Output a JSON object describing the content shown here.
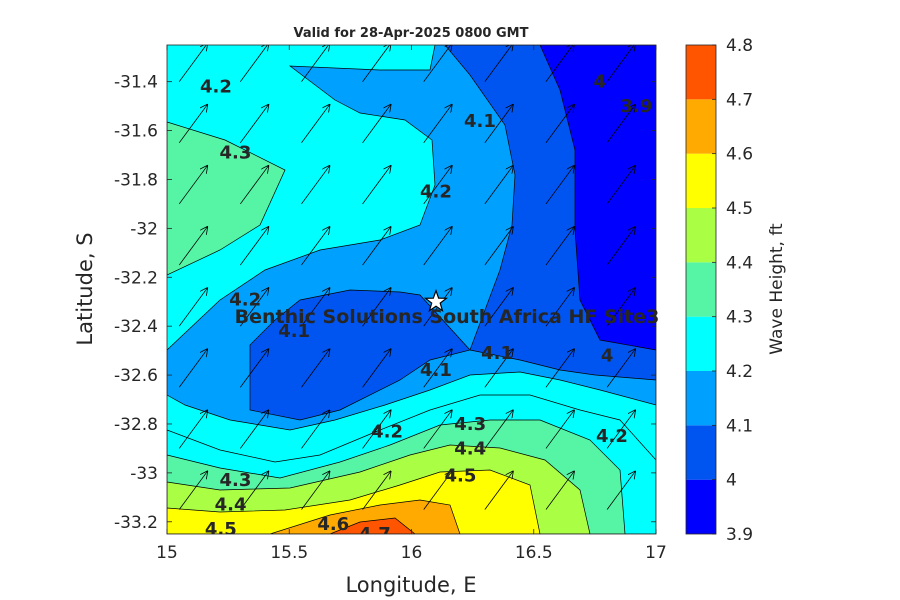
{
  "chart_data": {
    "type": "heatmap",
    "subtype": "filled-contour-with-vectors",
    "title": "Valid for 28-Apr-2025 0800 GMT",
    "xlabel": "Longitude, E",
    "ylabel": "Latitude, S",
    "xlim": [
      15,
      17
    ],
    "ylim": [
      -33.25,
      -31.25
    ],
    "xticks": [
      {
        "value": 15,
        "label": "15"
      },
      {
        "value": 15.5,
        "label": "15.5"
      },
      {
        "value": 16,
        "label": "16"
      },
      {
        "value": 16.5,
        "label": "16.5"
      },
      {
        "value": 17,
        "label": "17"
      }
    ],
    "yticks": [
      {
        "value": -31.4,
        "label": "-31.4"
      },
      {
        "value": -31.6,
        "label": "-31.6"
      },
      {
        "value": -31.8,
        "label": "-31.8"
      },
      {
        "value": -32,
        "label": "-32"
      },
      {
        "value": -32.2,
        "label": "-32.2"
      },
      {
        "value": -32.4,
        "label": "-32.4"
      },
      {
        "value": -32.6,
        "label": "-32.6"
      },
      {
        "value": -32.8,
        "label": "-32.8"
      },
      {
        "value": -33,
        "label": "-33"
      },
      {
        "value": -33.2,
        "label": "-33.2"
      }
    ],
    "colorbar": {
      "label": "Wave Height, ft",
      "range": [
        3.9,
        4.8
      ],
      "levels": [
        3.9,
        4.0,
        4.1,
        4.2,
        4.3,
        4.4,
        4.5,
        4.6,
        4.7,
        4.8
      ],
      "tick_labels": [
        "3.9",
        "4",
        "4.1",
        "4.2",
        "4.3",
        "4.4",
        "4.5",
        "4.6",
        "4.7",
        "4.8"
      ],
      "colors": [
        "#0000ff",
        "#0055f0",
        "#00a0ff",
        "#00ffff",
        "#55f5a5",
        "#aaff44",
        "#ffff00",
        "#ffaa00",
        "#ff5500"
      ]
    },
    "contour_labels": [
      {
        "text": "4.2",
        "lon": 15.2,
        "lat": -31.42
      },
      {
        "text": "4.3",
        "lon": 15.28,
        "lat": -31.69
      },
      {
        "text": "4.1",
        "lon": 16.28,
        "lat": -31.56
      },
      {
        "text": "4.2",
        "lon": 16.1,
        "lat": -31.85
      },
      {
        "text": "4",
        "lon": 16.77,
        "lat": -31.4
      },
      {
        "text": "3.9",
        "lon": 16.92,
        "lat": -31.5
      },
      {
        "text": "4.2",
        "lon": 15.32,
        "lat": -32.29
      },
      {
        "text": "4.1",
        "lon": 15.52,
        "lat": -32.42
      },
      {
        "text": "4.1",
        "lon": 16.1,
        "lat": -32.58
      },
      {
        "text": "4.1",
        "lon": 16.35,
        "lat": -32.51
      },
      {
        "text": "4",
        "lon": 16.8,
        "lat": -32.52
      },
      {
        "text": "4.2",
        "lon": 15.9,
        "lat": -32.83
      },
      {
        "text": "4.3",
        "lon": 16.24,
        "lat": -32.8
      },
      {
        "text": "4.2",
        "lon": 16.82,
        "lat": -32.85
      },
      {
        "text": "4.4",
        "lon": 16.24,
        "lat": -32.9
      },
      {
        "text": "4.5",
        "lon": 16.2,
        "lat": -33.01
      },
      {
        "text": "4.3",
        "lon": 15.28,
        "lat": -33.03
      },
      {
        "text": "4.4",
        "lon": 15.26,
        "lat": -33.13
      },
      {
        "text": "4.5",
        "lon": 15.22,
        "lat": -33.23
      },
      {
        "text": "4.6",
        "lon": 15.68,
        "lat": -33.21
      },
      {
        "text": "4.7",
        "lon": 15.85,
        "lat": -33.25
      }
    ],
    "site": {
      "label": "Benthic Solutions South Africa HF Site3",
      "lon": 16.1,
      "lat": -32.3,
      "marker": "star"
    },
    "vector_field": {
      "description_units": "direction toward NE",
      "lons": [
        15.0,
        15.25,
        15.5,
        15.75,
        16.0,
        16.25,
        16.5,
        16.75
      ],
      "lats": [
        -31.35,
        -31.6,
        -31.85,
        -32.1,
        -32.35,
        -32.6,
        -32.85,
        -33.1
      ]
    }
  }
}
